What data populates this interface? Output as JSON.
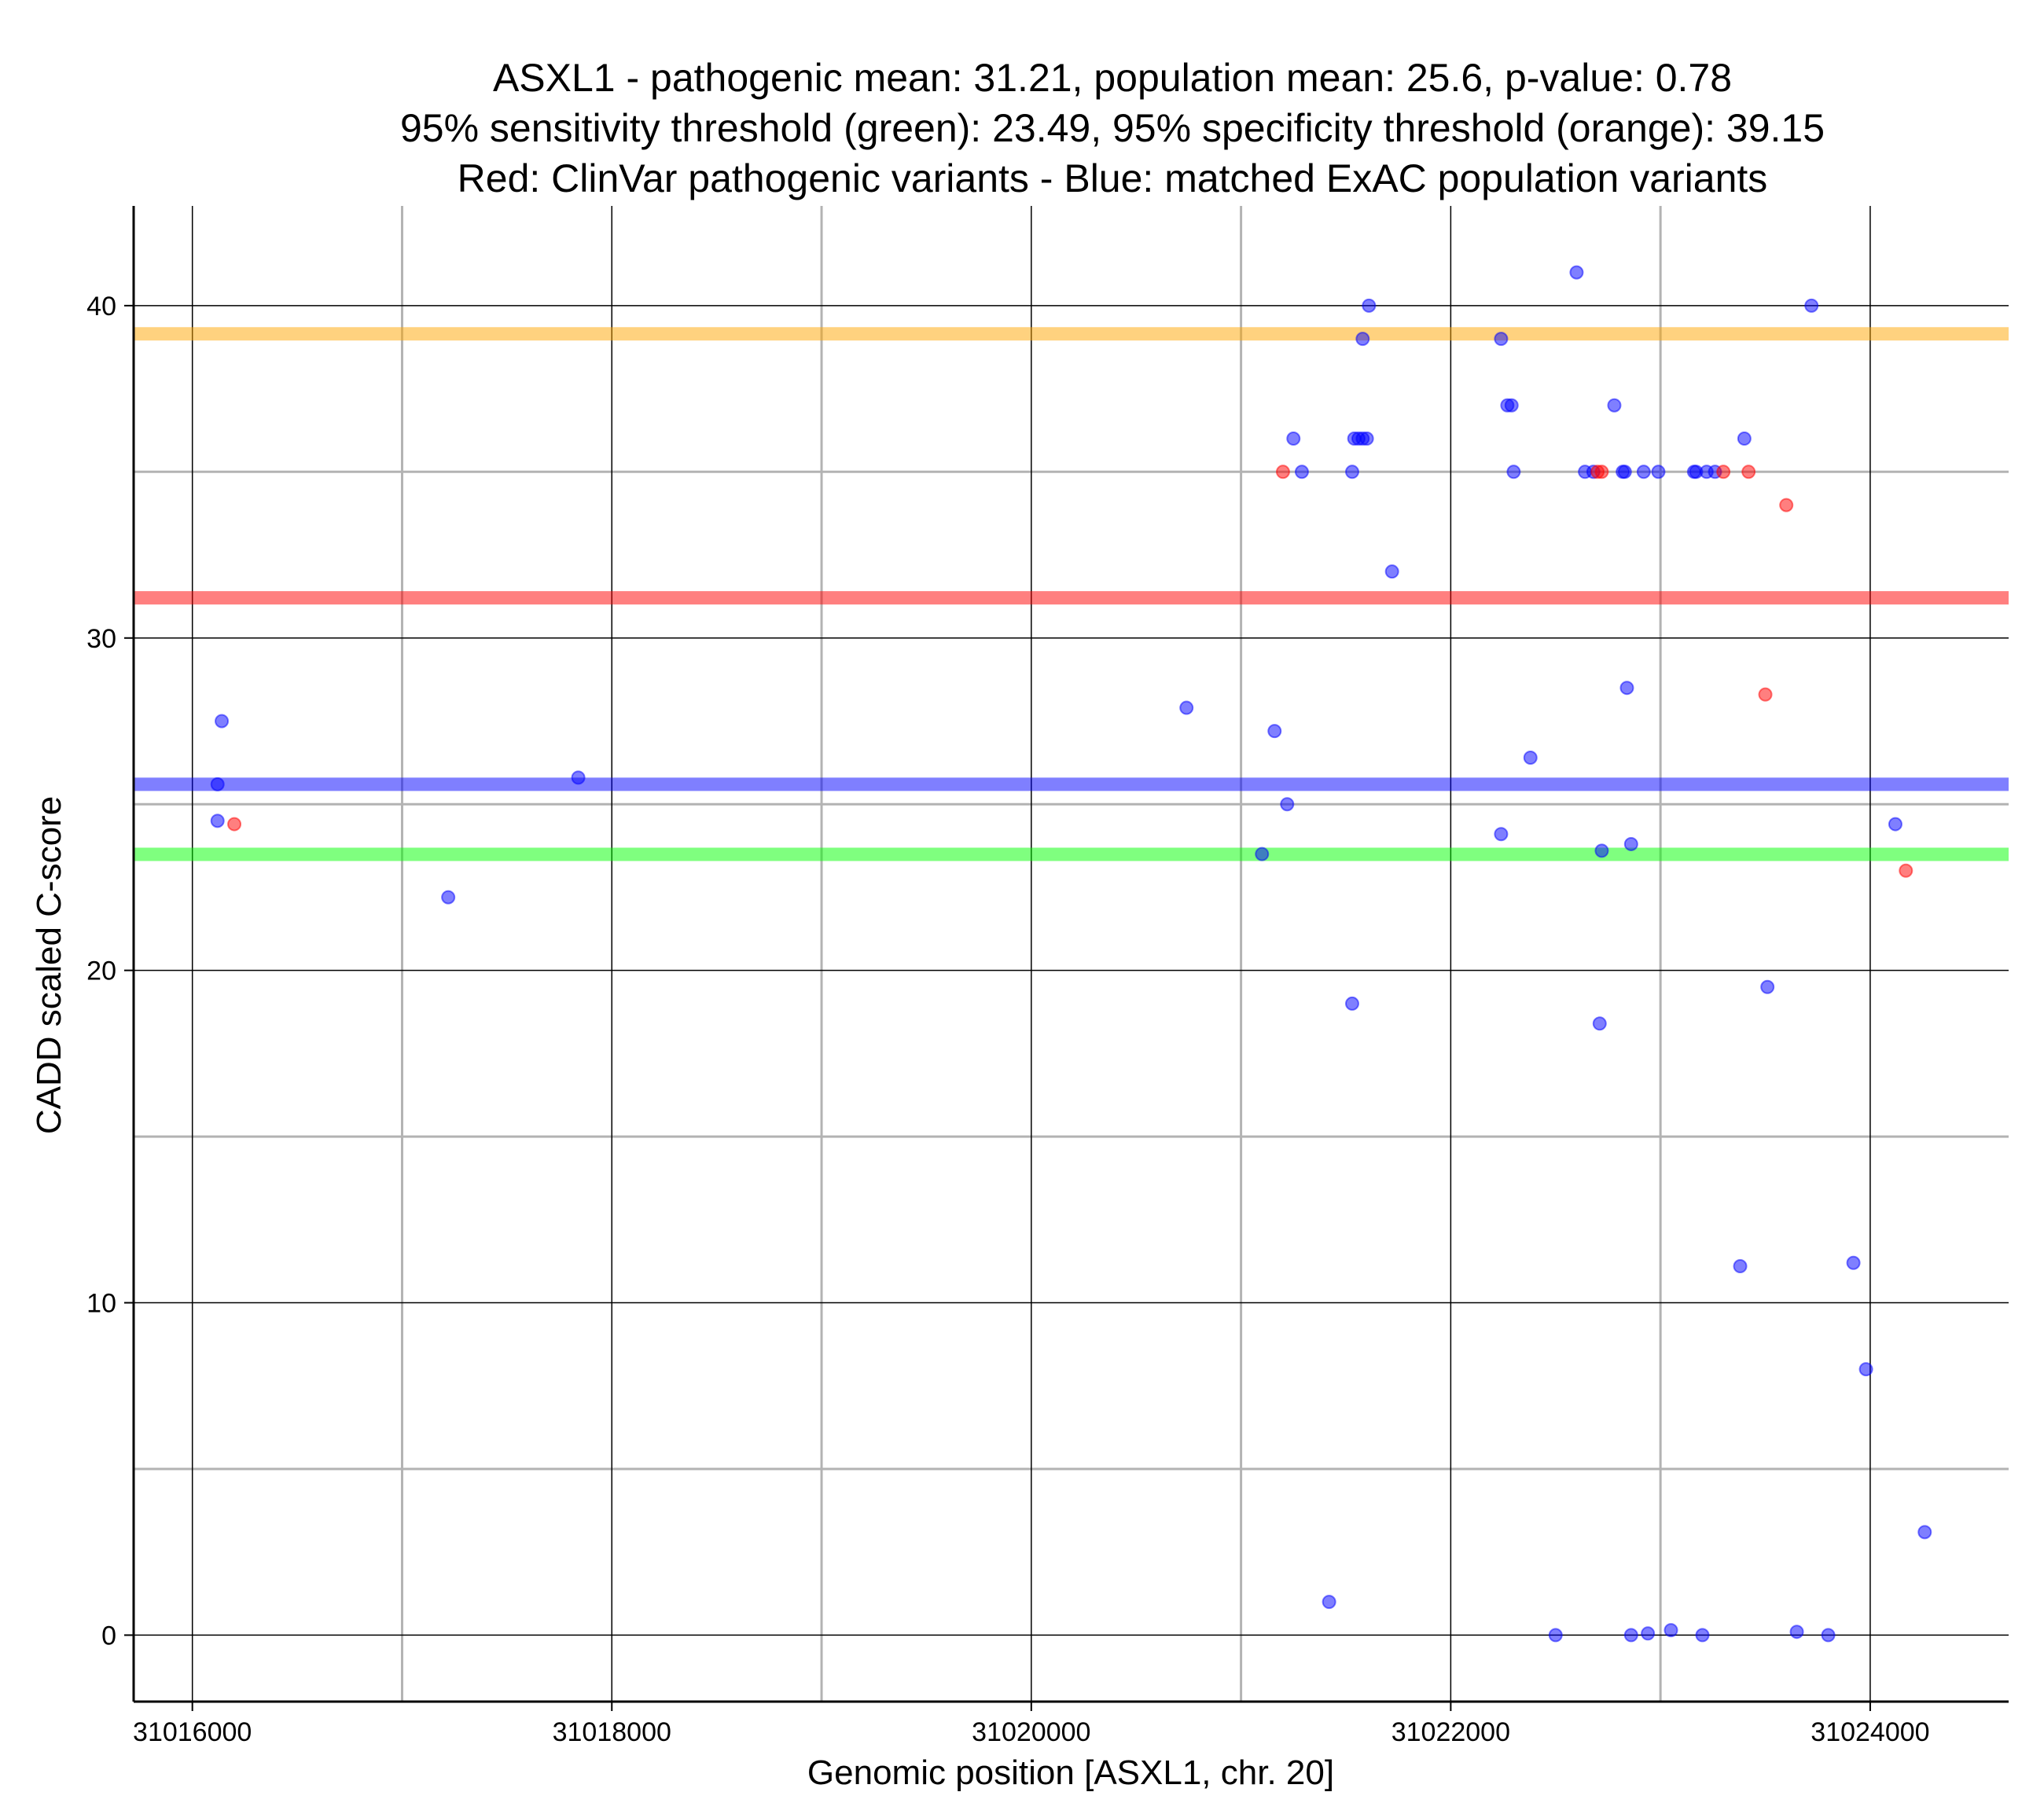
{
  "chart_data": {
    "type": "scatter",
    "title": [
      "ASXL1 - pathogenic mean: 31.21, population mean: 25.6, p-value: 0.78",
      "95% sensitivity threshold (green): 23.49, 95% specificity threshold (orange): 39.15",
      "Red: ClinVar pathogenic variants - Blue: matched ExAC population variants"
    ],
    "xlabel": "Genomic position [ASXL1, chr. 20]",
    "ylabel": "CADD scaled C-score",
    "xlim": [
      31015720,
      31024660
    ],
    "ylim": [
      -2,
      43
    ],
    "x_ticks": [
      31016000,
      31018000,
      31020000,
      31022000,
      31024000
    ],
    "x_tick_labels": [
      "31016000",
      "31018000",
      "31020000",
      "31022000",
      "31024000"
    ],
    "x_minor_ticks": [
      31017000,
      31019000,
      31021000,
      31023000
    ],
    "y_ticks": [
      0,
      10,
      20,
      30,
      40
    ],
    "y_tick_labels": [
      "0",
      "10",
      "20",
      "30",
      "40"
    ],
    "y_minor_ticks": [
      5,
      15,
      25,
      35
    ],
    "reference_lines": [
      {
        "name": "specificity threshold",
        "y": 39.15,
        "color": "#FFA500",
        "opacity": 0.5
      },
      {
        "name": "pathogenic mean",
        "y": 31.21,
        "color": "#FF0000",
        "opacity": 0.5
      },
      {
        "name": "population mean",
        "y": 25.6,
        "color": "#0000FF",
        "opacity": 0.5
      },
      {
        "name": "sensitivity threshold",
        "y": 23.49,
        "color": "#00FF00",
        "opacity": 0.5
      }
    ],
    "series": [
      {
        "name": "ExAC population variants",
        "color": "#0000FF",
        "points": [
          [
            31016140,
            27.5
          ],
          [
            31016120,
            25.6
          ],
          [
            31016120,
            24.5
          ],
          [
            31017220,
            22.2
          ],
          [
            31017840,
            25.8
          ],
          [
            31020740,
            27.9
          ],
          [
            31021100,
            23.5
          ],
          [
            31021160,
            27.2
          ],
          [
            31021220,
            25.0
          ],
          [
            31021250,
            36.0
          ],
          [
            31021290,
            35.0
          ],
          [
            31021420,
            1.0
          ],
          [
            31021530,
            35.0
          ],
          [
            31021530,
            19.0
          ],
          [
            31021540,
            36.0
          ],
          [
            31021560,
            36.0
          ],
          [
            31021580,
            36.0
          ],
          [
            31021600,
            36.0
          ],
          [
            31021580,
            39.0
          ],
          [
            31021610,
            40.0
          ],
          [
            31021720,
            32.0
          ],
          [
            31022240,
            24.1
          ],
          [
            31022240,
            39.0
          ],
          [
            31022270,
            37.0
          ],
          [
            31022290,
            37.0
          ],
          [
            31022300,
            35.0
          ],
          [
            31022380,
            26.4
          ],
          [
            31022500,
            0.0
          ],
          [
            31022600,
            41.0
          ],
          [
            31022640,
            35.0
          ],
          [
            31022680,
            35.0
          ],
          [
            31022710,
            18.4
          ],
          [
            31022720,
            23.6
          ],
          [
            31022780,
            37.0
          ],
          [
            31022820,
            35.0
          ],
          [
            31022830,
            35.0
          ],
          [
            31022840,
            28.5
          ],
          [
            31022860,
            23.8
          ],
          [
            31022860,
            0.0
          ],
          [
            31022920,
            35.0
          ],
          [
            31022940,
            0.05
          ],
          [
            31022990,
            35.0
          ],
          [
            31023050,
            0.15
          ],
          [
            31023160,
            35.0
          ],
          [
            31023170,
            35.0
          ],
          [
            31023220,
            35.0
          ],
          [
            31023200,
            0.0
          ],
          [
            31023260,
            35.0
          ],
          [
            31023380,
            11.1
          ],
          [
            31023400,
            36.0
          ],
          [
            31023510,
            19.5
          ],
          [
            31023650,
            0.1
          ],
          [
            31023720,
            40.0
          ],
          [
            31023800,
            0.0
          ],
          [
            31023920,
            11.2
          ],
          [
            31023980,
            8.0
          ],
          [
            31024120,
            24.4
          ],
          [
            31024260,
            3.1
          ]
        ]
      },
      {
        "name": "ClinVar pathogenic variants",
        "color": "#FF0000",
        "points": [
          [
            31016200,
            24.4
          ],
          [
            31021200,
            35.0
          ],
          [
            31022700,
            35.0
          ],
          [
            31022720,
            35.0
          ],
          [
            31023300,
            35.0
          ],
          [
            31023420,
            35.0
          ],
          [
            31023500,
            28.3
          ],
          [
            31023600,
            34.0
          ],
          [
            31024170,
            23.0
          ]
        ]
      }
    ]
  }
}
